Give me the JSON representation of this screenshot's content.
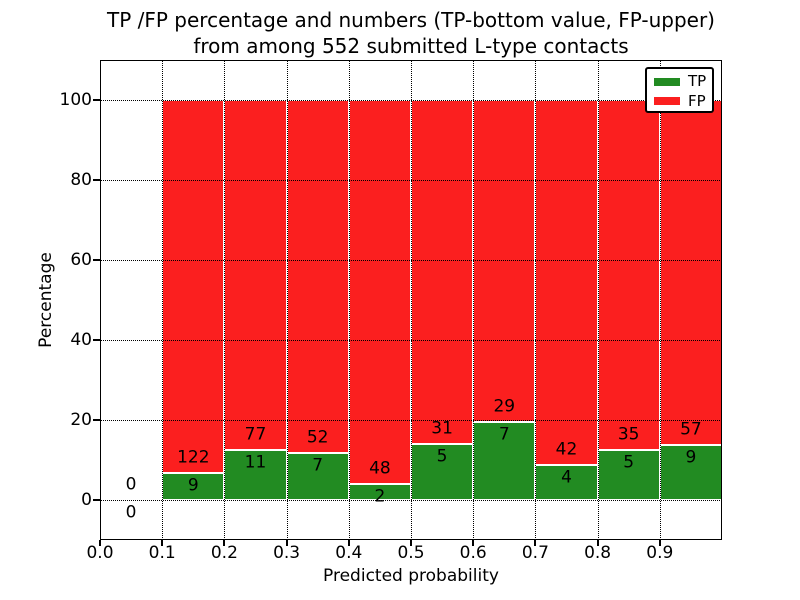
{
  "chart_data": {
    "type": "bar",
    "stacked": true,
    "title_lines": [
      "TP /FP percentage and numbers (TP-bottom value, FP-upper)",
      "from among 552 submitted L-type contacts"
    ],
    "xlabel": "Predicted probability",
    "ylabel": "Percentage",
    "xlim": [
      0.0,
      1.0
    ],
    "ylim": [
      -10,
      110
    ],
    "xtick_values": [
      0.0,
      0.1,
      0.2,
      0.3,
      0.4,
      0.5,
      0.6,
      0.7,
      0.8,
      0.9
    ],
    "xtick_labels": [
      "0.0",
      "0.1",
      "0.2",
      "0.3",
      "0.4",
      "0.5",
      "0.6",
      "0.7",
      "0.8",
      "0.9"
    ],
    "ytick_values": [
      0,
      20,
      40,
      60,
      80,
      100
    ],
    "grid": {
      "style": "dotted",
      "color": "#000000",
      "above_bars": true
    },
    "colors": {
      "tp": "#228b22",
      "fp": "#fb1f1f",
      "bar_edge": "#ffffff"
    },
    "legend": {
      "position": "upper right",
      "entries": [
        {
          "label": "TP",
          "color_key": "tp"
        },
        {
          "label": "FP",
          "color_key": "fp"
        }
      ]
    },
    "total_contacts": 552,
    "bins": [
      {
        "x_start": 0.0,
        "x_end": 0.1,
        "tp_count": 0,
        "fp_count": 0,
        "tp_pct": 0.0,
        "fp_pct": 0.0
      },
      {
        "x_start": 0.1,
        "x_end": 0.2,
        "tp_count": 9,
        "fp_count": 122,
        "tp_pct": 6.87,
        "fp_pct": 93.13
      },
      {
        "x_start": 0.2,
        "x_end": 0.3,
        "tp_count": 11,
        "fp_count": 77,
        "tp_pct": 12.5,
        "fp_pct": 87.5
      },
      {
        "x_start": 0.3,
        "x_end": 0.4,
        "tp_count": 7,
        "fp_count": 52,
        "tp_pct": 11.86,
        "fp_pct": 88.14
      },
      {
        "x_start": 0.4,
        "x_end": 0.5,
        "tp_count": 2,
        "fp_count": 48,
        "tp_pct": 4.0,
        "fp_pct": 96.0
      },
      {
        "x_start": 0.5,
        "x_end": 0.6,
        "tp_count": 5,
        "fp_count": 31,
        "tp_pct": 13.89,
        "fp_pct": 86.11
      },
      {
        "x_start": 0.6,
        "x_end": 0.7,
        "tp_count": 7,
        "fp_count": 29,
        "tp_pct": 19.44,
        "fp_pct": 80.56
      },
      {
        "x_start": 0.7,
        "x_end": 0.8,
        "tp_count": 4,
        "fp_count": 42,
        "tp_pct": 8.7,
        "fp_pct": 91.3
      },
      {
        "x_start": 0.8,
        "x_end": 0.9,
        "tp_count": 5,
        "fp_count": 35,
        "tp_pct": 12.5,
        "fp_pct": 87.5
      },
      {
        "x_start": 0.9,
        "x_end": 1.0,
        "tp_count": 9,
        "fp_count": 57,
        "tp_pct": 13.64,
        "fp_pct": 86.36
      }
    ]
  }
}
